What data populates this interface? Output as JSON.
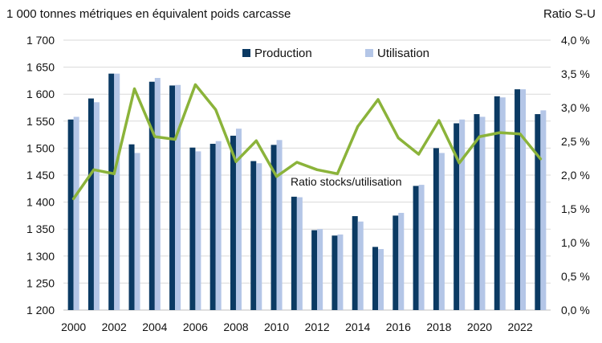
{
  "chart_data": {
    "type": "bar",
    "title": "",
    "y_left_label": "1 000 tonnes métriques en équivalent poids carcasse",
    "y_right_label": "Ratio S-U",
    "x_tick_labels": [
      "2000",
      "2002",
      "2004",
      "2006",
      "2008",
      "2010",
      "2012",
      "2014",
      "2016",
      "2018",
      "2020",
      "2022"
    ],
    "y_left_ticks": [
      "1 200",
      "1 250",
      "1 300",
      "1 350",
      "1 400",
      "1 450",
      "1 500",
      "1 550",
      "1 600",
      "1 650",
      "1 700"
    ],
    "y_right_ticks": [
      "0,0 %",
      "0,5 %",
      "1,0 %",
      "1,5 %",
      "2,0 %",
      "2,5 %",
      "3,0 %",
      "3,5 %",
      "4,0 %"
    ],
    "y_left_range": [
      1200,
      1700
    ],
    "y_right_range": [
      0,
      4.0
    ],
    "grid": "horizontal",
    "legend_placement": "top-center",
    "colors": {
      "production": "#0b3a63",
      "utilisation": "#b4c6e7",
      "ratio": "#8bb33a",
      "grid": "#d9d9d9",
      "text": "#111111"
    },
    "years": [
      2000,
      2001,
      2002,
      2003,
      2004,
      2005,
      2006,
      2007,
      2008,
      2009,
      2010,
      2011,
      2012,
      2013,
      2014,
      2015,
      2016,
      2017,
      2018,
      2019,
      2020,
      2021,
      2022,
      2023
    ],
    "series": [
      {
        "name": "Production",
        "kind": "bar",
        "values": [
          1553,
          1592,
          1638,
          1507,
          1623,
          1616,
          1501,
          1508,
          1523,
          1476,
          1506,
          1410,
          1348,
          1338,
          1374,
          1317,
          1375,
          1430,
          1500,
          1546,
          1563,
          1596,
          1609,
          1563
        ]
      },
      {
        "name": "Utilisation",
        "kind": "bar",
        "values": [
          1558,
          1585,
          1638,
          1491,
          1630,
          1617,
          1494,
          1513,
          1536,
          1472,
          1515,
          1409,
          1350,
          1340,
          1364,
          1313,
          1380,
          1432,
          1491,
          1553,
          1558,
          1594,
          1609,
          1570
        ]
      },
      {
        "name": "Ratio stocks/utilisation",
        "kind": "line",
        "axis": "right",
        "values": [
          1.65,
          2.08,
          2.02,
          3.28,
          2.57,
          2.53,
          3.34,
          2.97,
          2.2,
          2.51,
          1.98,
          2.19,
          2.08,
          2.02,
          2.72,
          3.12,
          2.55,
          2.31,
          2.81,
          2.18,
          2.57,
          2.63,
          2.61,
          2.24
        ]
      }
    ],
    "annotation": "Ratio stocks/utilisation"
  }
}
